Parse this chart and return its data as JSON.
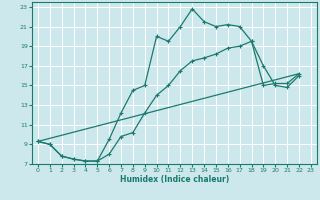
{
  "bg_color": "#cce8ec",
  "grid_color": "#ffffff",
  "line_color": "#1a7a6e",
  "xlabel": "Humidex (Indice chaleur)",
  "xlim": [
    -0.5,
    23.5
  ],
  "ylim": [
    7,
    23.5
  ],
  "xticks": [
    0,
    1,
    2,
    3,
    4,
    5,
    6,
    7,
    8,
    9,
    10,
    11,
    12,
    13,
    14,
    15,
    16,
    17,
    18,
    19,
    20,
    21,
    22,
    23
  ],
  "yticks": [
    7,
    9,
    11,
    13,
    15,
    17,
    19,
    21,
    23
  ],
  "line1_x": [
    0,
    1,
    2,
    3,
    4,
    5,
    6,
    7,
    8,
    9,
    10,
    11,
    12,
    13,
    14,
    15,
    16,
    17,
    18,
    19,
    20,
    21,
    22
  ],
  "line1_y": [
    9.3,
    9.0,
    7.8,
    7.5,
    7.3,
    7.3,
    9.5,
    12.2,
    14.5,
    15.0,
    20.0,
    19.5,
    21.0,
    22.8,
    21.5,
    21.0,
    21.2,
    21.0,
    19.5,
    17.0,
    15.0,
    14.8,
    16.0
  ],
  "line2_x": [
    0,
    1,
    2,
    3,
    4,
    5,
    6,
    7,
    8,
    9,
    10,
    11,
    12,
    13,
    14,
    15,
    16,
    17,
    18,
    19,
    20,
    21,
    22
  ],
  "line2_y": [
    9.3,
    9.0,
    7.8,
    7.5,
    7.3,
    7.3,
    8.0,
    9.8,
    10.2,
    12.2,
    14.0,
    15.0,
    16.5,
    17.5,
    17.8,
    18.2,
    18.8,
    19.0,
    19.5,
    15.0,
    15.2,
    15.2,
    16.2
  ],
  "line3_x": [
    0,
    22
  ],
  "line3_y": [
    9.3,
    16.2
  ]
}
